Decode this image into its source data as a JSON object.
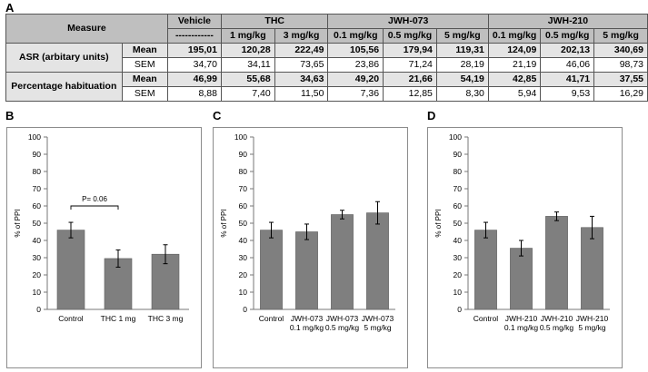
{
  "labels": {
    "panel_a": "A",
    "panel_b": "B",
    "panel_c": "C",
    "panel_d": "D"
  },
  "table": {
    "measure_header": "Measure",
    "group_headers": [
      "Vehicle",
      "THC",
      "JWH-073",
      "JWH-210"
    ],
    "dose_headers": [
      "------------",
      "1 mg/kg",
      "3 mg/kg",
      "0.1 mg/kg",
      "0.5 mg/kg",
      "5 mg/kg",
      "0.1 mg/kg",
      "0.5 mg/kg",
      "5 mg/kg"
    ],
    "rows": [
      {
        "measure": "ASR (arbitary units)",
        "stat": "Mean",
        "values": [
          "195,01",
          "120,28",
          "222,49",
          "105,56",
          "179,94",
          "119,31",
          "124,09",
          "202,13",
          "340,69"
        ]
      },
      {
        "measure": "",
        "stat": "SEM",
        "values": [
          "34,70",
          "34,11",
          "73,65",
          "23,86",
          "71,24",
          "28,19",
          "21,19",
          "46,06",
          "98,73"
        ]
      },
      {
        "measure": "Percentage habituation",
        "stat": "Mean",
        "values": [
          "46,99",
          "55,68",
          "34,63",
          "49,20",
          "21,66",
          "54,19",
          "42,85",
          "41,71",
          "37,55"
        ]
      },
      {
        "measure": "",
        "stat": "SEM",
        "values": [
          "8,88",
          "7,40",
          "11,50",
          "7,36",
          "12,85",
          "8,30",
          "5,94",
          "9,53",
          "16,29"
        ]
      }
    ]
  },
  "chart_data": [
    {
      "type": "bar",
      "panel": "B",
      "ylabel": "% of PPI",
      "ylim": [
        0,
        100
      ],
      "yticks": [
        "0",
        "10",
        "20",
        "30",
        "40",
        "50",
        "60",
        "70",
        "80",
        "90",
        "100"
      ],
      "categories": [
        [
          "Control"
        ],
        [
          "THC 1 mg"
        ],
        [
          "THC 3 mg"
        ]
      ],
      "values": [
        46,
        29.5,
        32
      ],
      "errors": [
        4.5,
        5,
        5.5
      ],
      "annotation": {
        "text": "P= 0.06",
        "from": 0,
        "to": 1,
        "y": 60
      }
    },
    {
      "type": "bar",
      "panel": "C",
      "ylabel": "% of PPI",
      "ylim": [
        0,
        100
      ],
      "yticks": [
        "0",
        "10",
        "20",
        "30",
        "40",
        "50",
        "60",
        "70",
        "80",
        "90",
        "100"
      ],
      "categories": [
        [
          "Control"
        ],
        [
          "JWH-073",
          "0.1 mg/kg"
        ],
        [
          "JWH-073",
          "0.5 mg/kg"
        ],
        [
          "JWH-073",
          "5 mg/kg"
        ]
      ],
      "values": [
        46,
        45,
        55,
        56
      ],
      "errors": [
        4.5,
        4.5,
        2.5,
        6.5
      ]
    },
    {
      "type": "bar",
      "panel": "D",
      "ylabel": "% of PPI",
      "ylim": [
        0,
        100
      ],
      "yticks": [
        "0",
        "10",
        "20",
        "30",
        "40",
        "50",
        "60",
        "70",
        "80",
        "90",
        "100"
      ],
      "categories": [
        [
          "Control"
        ],
        [
          "JWH-210",
          "0.1 mg/kg"
        ],
        [
          "JWH-210",
          "0.5 mg/kg"
        ],
        [
          "JWH-210",
          "5 mg/kg"
        ]
      ],
      "values": [
        46,
        35.5,
        54,
        47.5
      ],
      "errors": [
        4.5,
        4.5,
        2.5,
        6.5
      ]
    }
  ]
}
